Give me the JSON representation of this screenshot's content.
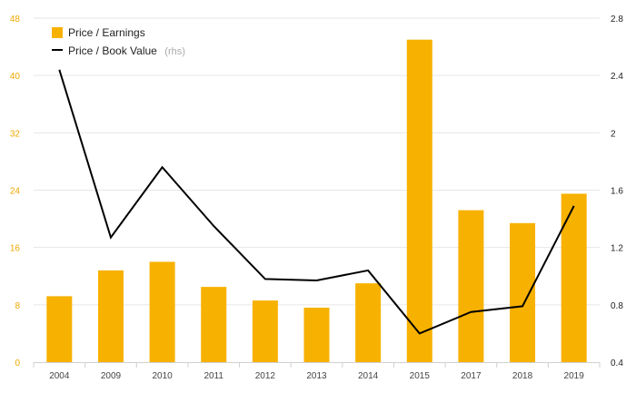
{
  "colors": {
    "bar": "#f7b100",
    "line": "#000000",
    "grid": "#e6e6e6",
    "left_tick": "#f0a800",
    "right_tick": "#222222"
  },
  "legend": {
    "bar_label": "Price / Earnings",
    "line_label": "Price / Book Value",
    "line_suffix": "(rhs)"
  },
  "chart_data": {
    "type": "bar",
    "categories": [
      "2004",
      "2009",
      "2010",
      "2011",
      "2012",
      "2013",
      "2014",
      "2015",
      "2017",
      "2018",
      "2019"
    ],
    "series": [
      {
        "name": "Price / Earnings",
        "type": "bar",
        "axis": "left",
        "values": [
          9.2,
          12.8,
          14.0,
          10.5,
          8.6,
          7.6,
          11.0,
          45.0,
          21.2,
          19.4,
          23.5
        ]
      },
      {
        "name": "Price / Book Value (rhs)",
        "type": "line",
        "axis": "right",
        "values": [
          2.44,
          1.27,
          1.76,
          1.35,
          0.98,
          0.97,
          1.04,
          0.6,
          0.75,
          0.79,
          1.49
        ]
      }
    ],
    "ylim_left": [
      0,
      48
    ],
    "yticks_left": [
      "0",
      "8",
      "16",
      "24",
      "32",
      "40",
      "48"
    ],
    "ylim_right": [
      0.4,
      2.8
    ],
    "yticks_right": [
      "0.4",
      "0.8",
      "1.2",
      "1.6",
      "2",
      "2.4",
      "2.8"
    ],
    "grid": true,
    "legend_position": "top-left"
  }
}
